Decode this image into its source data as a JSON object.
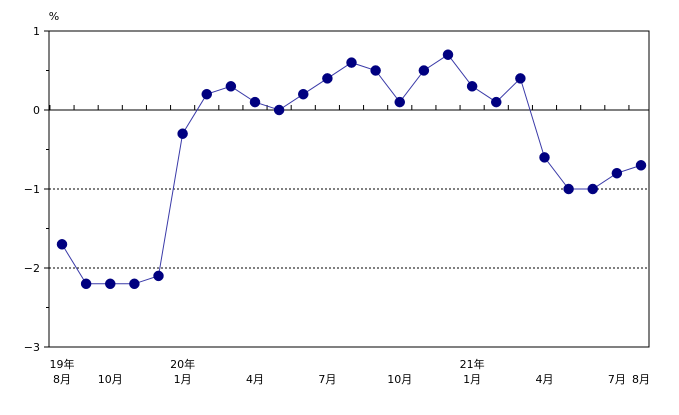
{
  "chart_data": {
    "type": "line",
    "y_unit": "%",
    "ylim": [
      -3,
      1
    ],
    "y_ticks": [
      "1",
      "0",
      "−1",
      "−2",
      "−3"
    ],
    "y_tick_values": [
      1,
      0,
      -1,
      -2,
      -3
    ],
    "dashed_reference_lines": [
      -1,
      -2
    ],
    "solid_reference_line": 0,
    "x": [
      "19年8月",
      "19年9月",
      "19年10月",
      "19年11月",
      "19年12月",
      "20年1月",
      "20年2月",
      "20年3月",
      "20年4月",
      "20年5月",
      "20年6月",
      "20年7月",
      "20年8月",
      "20年9月",
      "20年10月",
      "20年11月",
      "20年12月",
      "21年1月",
      "21年2月",
      "21年3月",
      "21年4月",
      "21年5月",
      "21年6月",
      "21年7月",
      "21年8月"
    ],
    "series": [
      {
        "values": [
          -1.7,
          -2.2,
          -2.2,
          -2.2,
          -2.1,
          -0.3,
          0.2,
          0.3,
          0.1,
          0.0,
          0.2,
          0.4,
          0.6,
          0.5,
          0.1,
          0.5,
          0.7,
          0.3,
          0.1,
          0.4,
          -0.6,
          -1.0,
          -1.0,
          -0.8,
          -0.7
        ],
        "line_color": "#3a3aa8",
        "marker_color": "#000080"
      }
    ],
    "x_tick_labels": [
      {
        "index": 0,
        "year": "19年",
        "month": "8月"
      },
      {
        "index": 2,
        "year": "",
        "month": "10月"
      },
      {
        "index": 5,
        "year": "20年",
        "month": "1月"
      },
      {
        "index": 8,
        "year": "",
        "month": "4月"
      },
      {
        "index": 11,
        "year": "",
        "month": "7月"
      },
      {
        "index": 14,
        "year": "",
        "month": "10月"
      },
      {
        "index": 17,
        "year": "21年",
        "month": "1月"
      },
      {
        "index": 20,
        "year": "",
        "month": "4月"
      },
      {
        "index": 23,
        "year": "",
        "month": "7月"
      },
      {
        "index": 24,
        "year": "",
        "month": "8月"
      }
    ],
    "grid": false
  }
}
